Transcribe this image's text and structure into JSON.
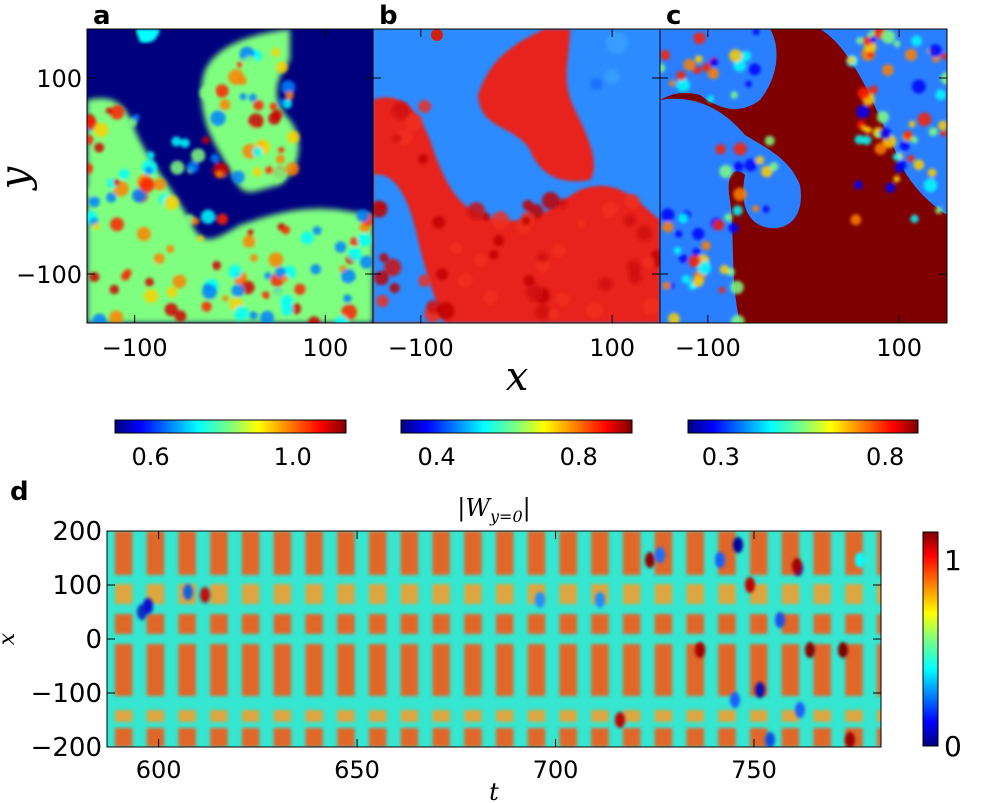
{
  "chart_data": [
    {
      "type": "heatmap",
      "panel": "a",
      "xlabel": "",
      "ylabel": "y",
      "x_ticks": [
        "−100",
        "100"
      ],
      "y_ticks": [
        "100",
        "−100"
      ],
      "xlim": [
        -150,
        150
      ],
      "ylim": [
        -150,
        150
      ],
      "colorbar": {
        "ticks": [
          "0.6",
          "1.0"
        ],
        "range": [
          0.5,
          1.15
        ]
      }
    },
    {
      "type": "heatmap",
      "panel": "b",
      "xlabel": "x",
      "ylabel": "",
      "x_ticks": [
        "−100",
        "100"
      ],
      "xlim": [
        -150,
        150
      ],
      "ylim": [
        -150,
        150
      ],
      "colorbar": {
        "ticks": [
          "0.4",
          "0.8"
        ],
        "range": [
          0.3,
          0.95
        ]
      }
    },
    {
      "type": "heatmap",
      "panel": "c",
      "xlabel": "",
      "ylabel": "",
      "x_ticks": [
        "−100",
        "100"
      ],
      "xlim": [
        -150,
        150
      ],
      "ylim": [
        -150,
        150
      ],
      "colorbar": {
        "ticks": [
          "0.3",
          "0.8"
        ],
        "range": [
          0.2,
          0.9
        ]
      }
    },
    {
      "type": "heatmap",
      "panel": "d",
      "title": "|W",
      "title_sub": "y=0",
      "title_end": "|",
      "xlabel": "t",
      "ylabel": "x",
      "x_ticks": [
        "600",
        "650",
        "700",
        "750"
      ],
      "x_tick_values": [
        600,
        650,
        700,
        750
      ],
      "y_ticks": [
        "200",
        "100",
        "0",
        "−100",
        "−200"
      ],
      "y_tick_values": [
        200,
        100,
        0,
        -100,
        -200
      ],
      "xlim": [
        587,
        782
      ],
      "ylim": [
        -200,
        200
      ],
      "oscillation_period": 8,
      "colorbar": {
        "ticks": [
          "1",
          "0"
        ],
        "tick_values": [
          1,
          0
        ],
        "range": [
          0,
          1.15
        ]
      }
    }
  ],
  "colors": {
    "jet_dark_blue": "#00007f",
    "jet_blue": "#0000ff",
    "jet_cyan": "#00ffff",
    "jet_yellow": "#ffff00",
    "jet_red": "#ff0000",
    "jet_dark_red": "#7f0000"
  }
}
